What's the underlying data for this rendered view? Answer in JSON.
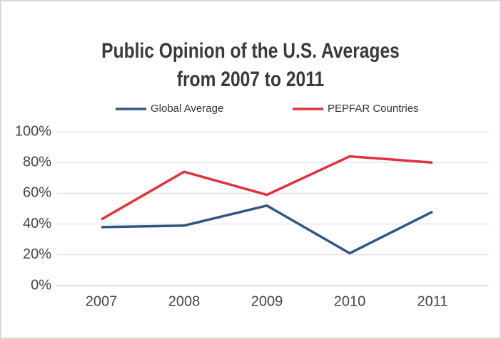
{
  "chart_data": {
    "type": "line",
    "title": [
      "Public Opinion of the U.S. Averages",
      "from 2007 to 2011"
    ],
    "categories": [
      "2007",
      "2008",
      "2009",
      "2010",
      "2011"
    ],
    "series": [
      {
        "name": "Global Average",
        "color": "#325683",
        "values": [
          38,
          39,
          52,
          21,
          48
        ]
      },
      {
        "name": "PEPFAR Countries",
        "color": "#e0313f",
        "values": [
          43,
          74,
          59,
          84,
          80
        ]
      }
    ],
    "ylim": [
      0,
      100
    ],
    "yticks": [
      {
        "value": 0,
        "label": "0%"
      },
      {
        "value": 20,
        "label": "20%"
      },
      {
        "value": 40,
        "label": "40%"
      },
      {
        "value": 60,
        "label": "60%"
      },
      {
        "value": 80,
        "label": "80%"
      },
      {
        "value": 100,
        "label": "100%"
      }
    ],
    "grid": true
  }
}
